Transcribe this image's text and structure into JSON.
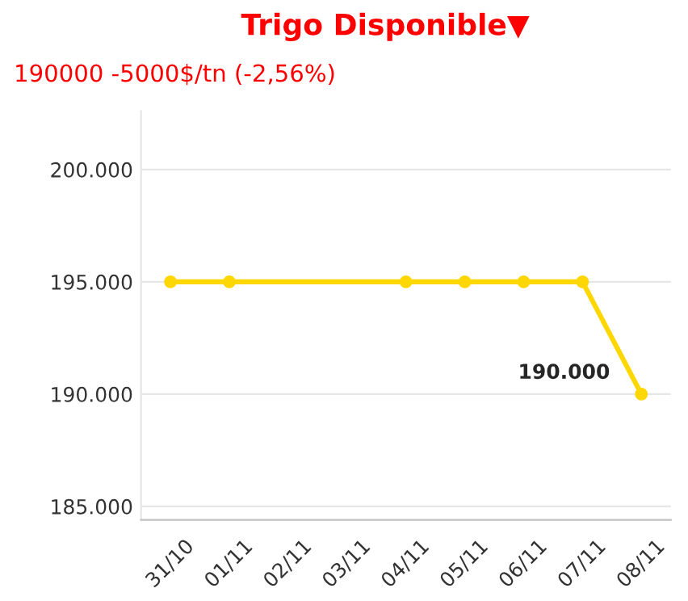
{
  "chart_data": {
    "type": "line",
    "title": "Trigo Disponible▼",
    "subtitle": "190000 -5000$/tn (-2,56%)",
    "categories": [
      "31/10",
      "01/11",
      "02/11",
      "03/11",
      "04/11",
      "05/11",
      "06/11",
      "07/11",
      "08/11"
    ],
    "series": [
      {
        "color": "#ffd700",
        "values": [
          195000,
          195000,
          null,
          null,
          195000,
          195000,
          195000,
          195000,
          190000
        ],
        "value_labels": [
          null,
          null,
          null,
          null,
          null,
          null,
          null,
          null,
          "190.000"
        ]
      }
    ],
    "ylim": [
      184400,
      202600
    ],
    "yticks": [
      {
        "value": 185000,
        "label": "185.000"
      },
      {
        "value": 190000,
        "label": "190.000"
      },
      {
        "value": 195000,
        "label": "195.000"
      },
      {
        "value": 200000,
        "label": "200.000"
      }
    ],
    "grid": "y",
    "marker": "circle",
    "line_style": "solid",
    "legend": false
  }
}
